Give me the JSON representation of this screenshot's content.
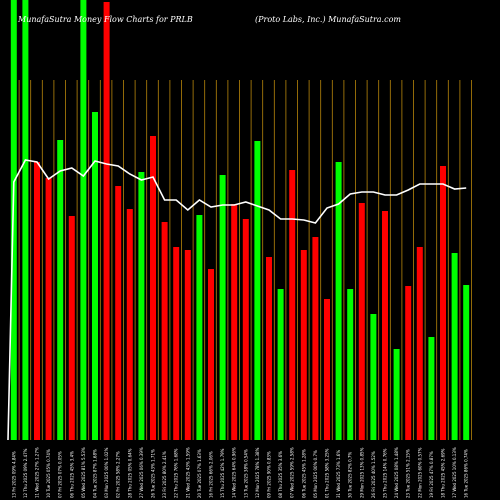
{
  "header": {
    "left": "MunafaSutra  Money Flow  Charts for PRLB",
    "right": "(Proto  Labs,  Inc.) MunafaSutra.com"
  },
  "colors": {
    "background": "#000000",
    "up": "#00ff00",
    "down": "#ff0000",
    "line": "#ffffff",
    "grid": "#b8860b"
  },
  "chart_data": {
    "type": "bar",
    "title": "MunafaSutra  Money Flow  Charts for PRLB",
    "subtitle": "(Proto  Labs,  Inc.) MunafaSutra.com",
    "ylim": [
      0,
      440
    ],
    "grid": "vertical",
    "categories": [
      "13 Fri 2025 09% 4.84%",
      "12 Thu 2025 09% 2.47%",
      "11 Wed 2025 27% 1.27%",
      "10 Tue 2025 05% 0.74%",
      "07 Fri 2025 07% 0.05%",
      "06 Thu 2025 45% 3.4%",
      "05 Wed 2025 81% 5.53%",
      "04 Tue 2025 87% 1.68%",
      "03 Mon 2025 00% 1.02%",
      "02 Fri 2025 58% 2.27%",
      "28 Thu 2025 05% 0.64%",
      "27 Wed 2025 06% 0.39%",
      "26 Tue 2025 43% 1.71%",
      "23 Fri 2025 80% 2.41%",
      "22 Thu 2025 76% 1.68%",
      "21 Wed 2025 43% 1.59%",
      "20 Tue 2025 07% 1.63%",
      "16 Fri 2025 66% 2.06%",
      "15 Thu 2025 42% 1.79%",
      "14 Wed 2025 64% 0.96%",
      "13 Tue 2025 38% 0.54%",
      "12 Mon 2025 78% 1.38%",
      "09 Fri 2025 90% 0.83%",
      "08 Thu 2025 35% 3.6%",
      "07 Wed 2025 59% 2.58%",
      "06 Tue 2025 45% 1.28%",
      "05 Mon 2025 00% 0.7%",
      "01 Thu 2025 58% 3.25%",
      "31 Wed 2025 73% 1.6%",
      "30 Tue 2025 82% 0.7%",
      "29 Mon 2025 13% 0.85%",
      "26 Fri 2025 40% 1.52%",
      "25 Thu 2025 14% 0.76%",
      "24 Wed 2025 08% 1.48%",
      "23 Tue 2025 51% 2.15%",
      "22 Mon 2025 60% 0.57%",
      "19 Fri 2025 47% 0.87%",
      "18 Thu 2025 45% 2.69%",
      "17 Wed 2025 10% 0.13%",
      "16 Tue 2025 86% 0.74%"
    ],
    "up_down": [
      "up",
      "up",
      "down",
      "down",
      "up",
      "down",
      "up",
      "up",
      "down",
      "down",
      "down",
      "up",
      "down",
      "down",
      "down",
      "down",
      "up",
      "down",
      "up",
      "down",
      "down",
      "up",
      "down",
      "up",
      "down",
      "down",
      "down",
      "down",
      "up",
      "up",
      "down",
      "up",
      "down",
      "up",
      "down",
      "down",
      "up",
      "down",
      "up",
      "up"
    ],
    "values": [
      440,
      440,
      278,
      262,
      300,
      224,
      440,
      328,
      438,
      254,
      231,
      268,
      304,
      218,
      193,
      190,
      225,
      171,
      265,
      236,
      221,
      299,
      183,
      151,
      270,
      190,
      203,
      141,
      278,
      151,
      237,
      126,
      229,
      91,
      154,
      193,
      103,
      274,
      187,
      155
    ],
    "flow_line": [
      258,
      280,
      278,
      261,
      269,
      272,
      264,
      279,
      276,
      274,
      266,
      260,
      263,
      240,
      240,
      230,
      240,
      233,
      235,
      235,
      238,
      234,
      230,
      221,
      221,
      220,
      217,
      232,
      236,
      246,
      248,
      248,
      245,
      245,
      250,
      256,
      256,
      256,
      251,
      252
    ]
  }
}
